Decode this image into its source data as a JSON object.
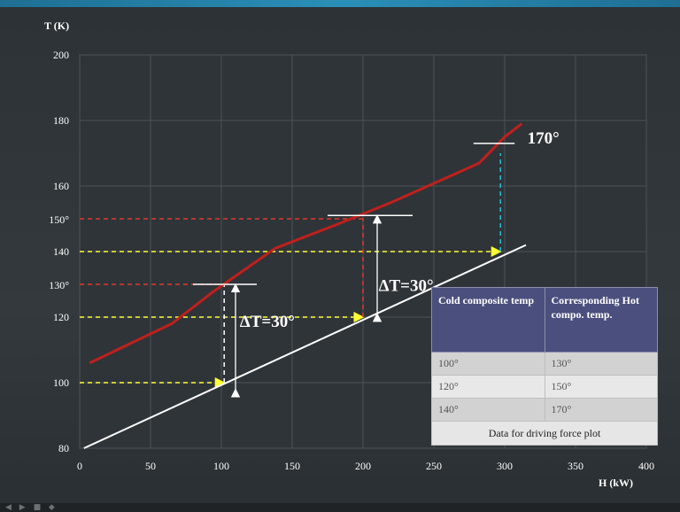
{
  "chart_data": {
    "type": "line",
    "ylabel": "T (K)",
    "xlabel": "H (kW)",
    "xlim": [
      0,
      400
    ],
    "ylim": [
      80,
      200
    ],
    "x_ticks": [
      "0",
      "50",
      "100",
      "150",
      "200",
      "250",
      "300",
      "350",
      "400"
    ],
    "y_ticks": [
      "80",
      "100",
      "120",
      "140",
      "160",
      "180",
      "200"
    ],
    "extra_y_labels": [
      "130°",
      "150°"
    ],
    "grid": true,
    "series": [
      {
        "color": "#c0201c",
        "points": [
          [
            7,
            106
          ],
          [
            65,
            118
          ],
          [
            95,
            128
          ],
          [
            138,
            141
          ],
          [
            180,
            148
          ],
          [
            220,
            155
          ],
          [
            282,
            167
          ],
          [
            300,
            175
          ],
          [
            312,
            179
          ]
        ]
      },
      {
        "color": "#ffffff",
        "points": [
          [
            3,
            80
          ],
          [
            315,
            142
          ]
        ]
      }
    ],
    "annotations": [
      {
        "text": "ΔT=30°",
        "x": 113,
        "y": 117
      },
      {
        "text": "ΔT=30°",
        "x": 211,
        "y": 128
      },
      {
        "text": "170°",
        "x": 316,
        "y": 173
      }
    ],
    "guides": [
      {
        "kind": "h",
        "color": "#ffff33",
        "y": 100,
        "x0": 0,
        "x1": 102
      },
      {
        "kind": "h",
        "color": "#ffff33",
        "y": 120,
        "x0": 0,
        "x1": 200
      },
      {
        "kind": "h",
        "color": "#ffff33",
        "y": 140,
        "x0": 0,
        "x1": 297
      },
      {
        "kind": "h",
        "color": "#e23a2a",
        "y": 130,
        "x0": 0,
        "x1": 102
      },
      {
        "kind": "h",
        "color": "#e23a2a",
        "y": 150,
        "x0": 0,
        "x1": 200
      },
      {
        "kind": "v",
        "color": "#ffffff",
        "x": 102,
        "y0": 100,
        "y1": 130
      },
      {
        "kind": "v",
        "color": "#e23a2a",
        "x": 200,
        "y0": 120,
        "y1": 150
      },
      {
        "kind": "v",
        "color": "#22c0d8",
        "x": 297,
        "y0": 140,
        "y1": 170
      }
    ],
    "markers": [
      {
        "kind": "tick",
        "x0": 80,
        "x1": 125,
        "y": 130
      },
      {
        "kind": "tick",
        "x0": 175,
        "x1": 235,
        "y": 151
      },
      {
        "kind": "tick",
        "x0": 278,
        "x1": 307,
        "y": 173
      },
      {
        "kind": "arrow",
        "x": 110,
        "y0": 98,
        "y1": 130
      },
      {
        "kind": "arrow",
        "x": 210,
        "y0": 121,
        "y1": 151
      }
    ]
  },
  "table": {
    "headers": [
      "Cold composite temp",
      "Corresponding Hot compo. temp."
    ],
    "rows": [
      [
        "100°",
        "130°"
      ],
      [
        "120°",
        "150°"
      ],
      [
        "140°",
        "170°"
      ]
    ],
    "caption": "Data for driving force plot"
  }
}
